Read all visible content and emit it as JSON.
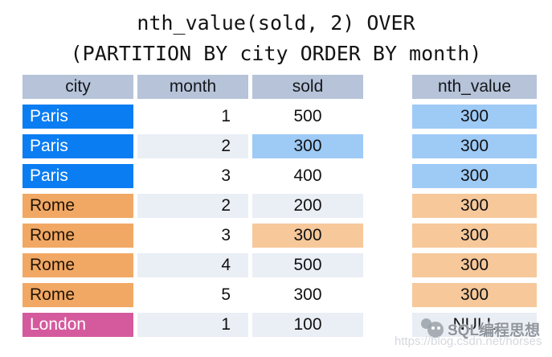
{
  "title": {
    "line1": "nth_value(sold, 2) OVER",
    "line2": "(PARTITION BY city ORDER BY month)"
  },
  "table": {
    "headers": {
      "city": "city",
      "month": "month",
      "sold": "sold",
      "nth_value": "nth_value"
    },
    "rows": [
      {
        "city": "Paris",
        "month": "1",
        "sold": "500",
        "nth_value": "300",
        "city_style": "blue",
        "alt": false,
        "sold_highlight": null,
        "nth_style": "blue"
      },
      {
        "city": "Paris",
        "month": "2",
        "sold": "300",
        "nth_value": "300",
        "city_style": "blue",
        "alt": true,
        "sold_highlight": "blue",
        "nth_style": "blue"
      },
      {
        "city": "Paris",
        "month": "3",
        "sold": "400",
        "nth_value": "300",
        "city_style": "blue",
        "alt": false,
        "sold_highlight": null,
        "nth_style": "blue"
      },
      {
        "city": "Rome",
        "month": "2",
        "sold": "200",
        "nth_value": "300",
        "city_style": "orange",
        "alt": true,
        "sold_highlight": null,
        "nth_style": "orange"
      },
      {
        "city": "Rome",
        "month": "3",
        "sold": "300",
        "nth_value": "300",
        "city_style": "orange",
        "alt": false,
        "sold_highlight": "orange",
        "nth_style": "orange"
      },
      {
        "city": "Rome",
        "month": "4",
        "sold": "500",
        "nth_value": "300",
        "city_style": "orange",
        "alt": true,
        "sold_highlight": null,
        "nth_style": "orange"
      },
      {
        "city": "Rome",
        "month": "5",
        "sold": "300",
        "nth_value": "300",
        "city_style": "orange",
        "alt": false,
        "sold_highlight": null,
        "nth_style": "orange"
      },
      {
        "city": "London",
        "month": "1",
        "sold": "100",
        "nth_value": "NULL",
        "city_style": "pink",
        "alt": true,
        "sold_highlight": null,
        "nth_style": "null"
      }
    ]
  },
  "colors": {
    "header": "#b6c3d8",
    "paris": "#0b7df2",
    "rome": "#f1a864",
    "london": "#d55a9d",
    "lightblue": "#9ecaf6",
    "lightorange": "#f6c89a",
    "stripe": "#eaeef5",
    "nullbg": "#e9edf4"
  },
  "watermark": {
    "brand": "SQL编程思想",
    "url": "https://blog.csdn.net/horses",
    "logo": "csdn-chat-bubbles-icon"
  }
}
